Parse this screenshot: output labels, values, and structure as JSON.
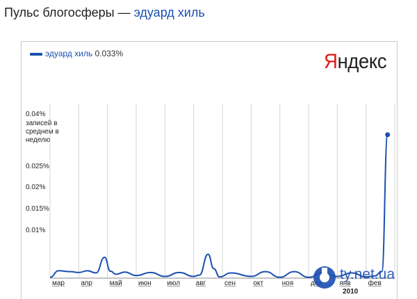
{
  "header": {
    "title_prefix": "Пульс блогосферы — ",
    "title_query": "эдуард хиль"
  },
  "legend": {
    "series_name": "эдуард хиль",
    "series_value": "0.033%"
  },
  "logo": {
    "first_letter": "Я",
    "rest": "ндекс"
  },
  "watermark": {
    "text": "ty.net.ua"
  },
  "chart_data": {
    "type": "line",
    "title": "Пульс блогосферы — эдуард хиль",
    "ylabel": "записей в среднем в неделю",
    "y_ticks": [
      "0.01%",
      "0.015%",
      "0.02%",
      "0.025%",
      "0.04%"
    ],
    "y_tick_values": [
      0.01,
      0.015,
      0.02,
      0.025,
      0.04
    ],
    "x_ticks": [
      "мар",
      "апр",
      "май",
      "июн",
      "июл",
      "авг",
      "сен",
      "окт",
      "ноя",
      "дек",
      "янв",
      "фев"
    ],
    "x_year_label": "2010",
    "grid": true,
    "legend_position": "top-left",
    "series": [
      {
        "name": "эдуард хиль",
        "color": "#1a4fb0",
        "last_value": "0.033%",
        "x": [
          0,
          0.3,
          0.7,
          1.0,
          1.3,
          1.6,
          1.9,
          2.1,
          2.3,
          2.6,
          3.0,
          3.5,
          4.0,
          4.5,
          5.0,
          5.2,
          5.5,
          5.7,
          5.9,
          6.3,
          7.0,
          7.5,
          8.0,
          8.5,
          9.0,
          9.5,
          10.0,
          10.5,
          11.0,
          11.3,
          11.55,
          11.75
        ],
        "values": [
          0.0002,
          0.0017,
          0.0015,
          0.0013,
          0.0017,
          0.0012,
          0.0048,
          0.0016,
          0.0009,
          0.0014,
          0.0006,
          0.0013,
          0.0004,
          0.0013,
          0.0004,
          0.0007,
          0.0055,
          0.0022,
          0.0003,
          0.0012,
          0.0004,
          0.0015,
          0.0002,
          0.0015,
          0.0002,
          0.0012,
          0.0004,
          0.0012,
          0.0003,
          0.0005,
          0.0015,
          0.033
        ]
      }
    ]
  }
}
